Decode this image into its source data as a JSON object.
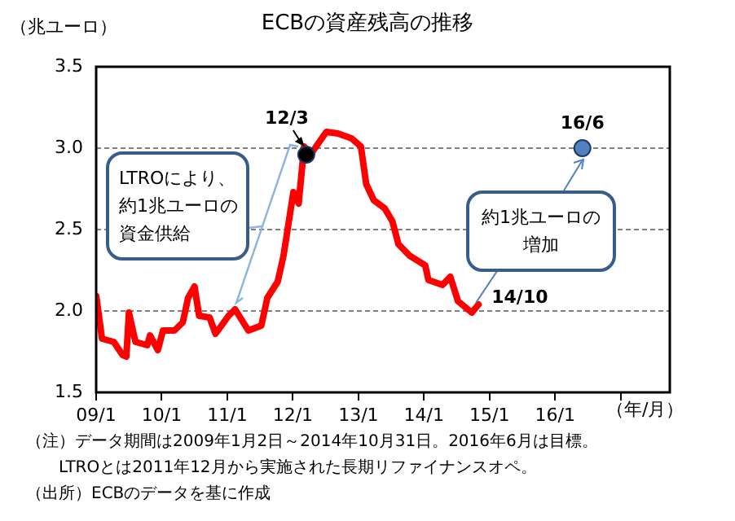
{
  "chart_data": {
    "type": "line",
    "title": "ECBの資産残高の推移",
    "ylabel": "（兆ユーロ）",
    "xlabel": "（年/月）",
    "xlim": [
      "2009-01",
      "2017-10"
    ],
    "xticks": [
      {
        "value": "2009-01",
        "label": "09/1"
      },
      {
        "value": "2010-01",
        "label": "10/1"
      },
      {
        "value": "2011-01",
        "label": "11/1"
      },
      {
        "value": "2012-01",
        "label": "12/1"
      },
      {
        "value": "2013-01",
        "label": "13/1"
      },
      {
        "value": "2014-01",
        "label": "14/1"
      },
      {
        "value": "2015-01",
        "label": "15/1"
      },
      {
        "value": "2016-01",
        "label": "16/1"
      },
      {
        "value": "2017-01",
        "label": null
      }
    ],
    "ylim": [
      1.5,
      3.5
    ],
    "yticks": [
      1.5,
      {
        "value": 2,
        "label": "2.0"
      },
      2.5,
      {
        "value": 3,
        "label": "3.0"
      },
      3.5
    ],
    "grid": "y",
    "line_style": "solid",
    "series": [
      {
        "color": "#ff0000",
        "x": [
          "2009-01-02",
          "2009-02-03",
          "2009-04-08",
          "2009-05-26",
          "2009-06-17",
          "2009-07-01",
          "2009-08-07",
          "2009-10-12",
          "2009-10-27",
          "2009-12-10",
          "2010-01-08",
          "2010-03-11",
          "2010-04-27",
          "2010-05-26",
          "2010-07-01",
          "2010-07-27",
          "2010-09-24",
          "2010-10-27",
          "2011-01-08",
          "2011-02-14",
          "2011-04-27",
          "2011-07-08",
          "2011-08-11",
          "2011-10-08",
          "2011-11-10",
          "2012-01-04",
          "2012-02-03",
          "2012-03-03",
          "2012-04-08",
          "2012-07-05",
          "2012-09-09",
          "2012-11-24",
          "2013-01-15",
          "2013-02-14",
          "2013-03-26",
          "2013-05-26",
          "2013-07-08",
          "2013-08-11",
          "2013-10-12",
          "2014-01-08",
          "2014-01-26",
          "2014-04-13",
          "2014-05-26",
          "2014-07-08",
          "2014-09-24",
          "2014-10-31"
        ],
        "values": [
          2.09,
          1.83,
          1.81,
          1.73,
          1.72,
          1.99,
          1.81,
          1.79,
          1.85,
          1.76,
          1.88,
          1.88,
          1.93,
          2.08,
          2.15,
          1.97,
          1.96,
          1.86,
          1.97,
          2.01,
          1.88,
          1.91,
          2.08,
          2.18,
          2.34,
          2.73,
          2.66,
          3.01,
          2.96,
          3.1,
          3.09,
          3.06,
          3.01,
          2.78,
          2.68,
          2.63,
          2.55,
          2.41,
          2.34,
          2.28,
          2.19,
          2.16,
          2.21,
          2.06,
          1.99,
          2.04
        ]
      },
      {
        "type": "scatter",
        "color": "#000000",
        "marker": "circle",
        "x": [
          "2012-03-15"
        ],
        "values": [
          2.96
        ]
      },
      {
        "type": "scatter",
        "color": "#4f81bd",
        "marker": "circle",
        "x": [
          "2016-06"
        ],
        "values": [
          3.0
        ]
      }
    ],
    "annotations": [
      {
        "text": "12/3",
        "x": "2012-03-15",
        "y": 2.96
      },
      {
        "text": "16/6",
        "x": "2016-06",
        "y": 3.0
      },
      {
        "text": "14/10",
        "x": "2014-10-31",
        "y": 2.04
      },
      "LTROにより、約1兆ユーロの資金供給",
      "約1兆ユーロの増加",
      "（注）データ期間は2009年1月2日～2014年10月31日。2016年6月は目標。",
      "LTROとは2011年12月から実施された長期リファイナンスオペ。",
      "（出所）ECBのデータを基に作成"
    ]
  }
}
